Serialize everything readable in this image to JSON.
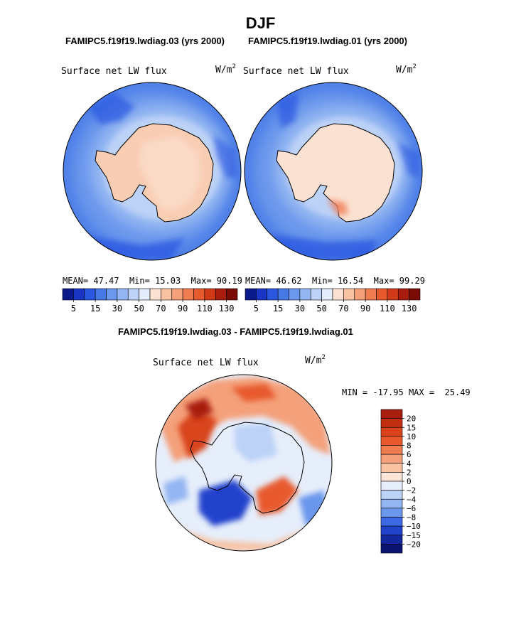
{
  "header": {
    "season": "DJF",
    "left_case": "FAMIPC5.f19f19.lwdiag.03 (yrs 2000)",
    "right_case": "FAMIPC5.f19f19.lwdiag.01 (yrs 2000)",
    "diff_title": "FAMIPC5.f19f19.lwdiag.03 - FAMIPC5.f19f19.lwdiag.01"
  },
  "chart_data": [
    {
      "type": "heatmap",
      "projection": "south-polar stereographic",
      "title": "Surface net LW flux",
      "units_base": "W/m",
      "units_exp": "2",
      "stats": {
        "mean_label": "MEAN=",
        "mean": "47.47",
        "min_label": "Min=",
        "min": "15.03",
        "max_label": "Max=",
        "max": "90.19"
      },
      "colorbar_ticks": [
        "5",
        "15",
        "30",
        "50",
        "70",
        "90",
        "110",
        "130"
      ],
      "colorbar_colors": [
        "#0b1a8a",
        "#1a35c4",
        "#2b56e0",
        "#4678e6",
        "#6b97ec",
        "#93b5f2",
        "#bcd2f7",
        "#e3ecfb",
        "#fbe1d1",
        "#f8c2a3",
        "#f4a07a",
        "#f07c52",
        "#e85a2e",
        "#d03a19",
        "#a81d0d",
        "#7a0b06"
      ]
    },
    {
      "type": "heatmap",
      "projection": "south-polar stereographic",
      "title": "Surface net LW flux",
      "units_base": "W/m",
      "units_exp": "2",
      "stats": {
        "mean_label": "MEAN=",
        "mean": "46.62",
        "min_label": "Min=",
        "min": "16.54",
        "max_label": "Max=",
        "max": "99.29"
      },
      "colorbar_ticks": [
        "5",
        "15",
        "30",
        "50",
        "70",
        "90",
        "110",
        "130"
      ],
      "colorbar_colors": [
        "#0b1a8a",
        "#1a35c4",
        "#2b56e0",
        "#4678e6",
        "#6b97ec",
        "#93b5f2",
        "#bcd2f7",
        "#e3ecfb",
        "#fbe1d1",
        "#f8c2a3",
        "#f4a07a",
        "#f07c52",
        "#e85a2e",
        "#d03a19",
        "#a81d0d",
        "#7a0b06"
      ]
    },
    {
      "type": "heatmap",
      "projection": "south-polar stereographic",
      "title": "Surface net LW flux",
      "units_base": "W/m",
      "units_exp": "2",
      "stats": {
        "min_label": "MIN =",
        "min": "-17.95",
        "max_label": "MAX =",
        "max": "25.49"
      },
      "colorbar_ticks": [
        "20",
        "15",
        "10",
        "8",
        "6",
        "4",
        "2",
        "0",
        "−2",
        "−4",
        "−6",
        "−8",
        "−10",
        "−15",
        "−20"
      ],
      "colorbar_colors": [
        "#a81d0d",
        "#c22e12",
        "#d9441c",
        "#e85a2e",
        "#f07c52",
        "#f4a07a",
        "#f8c2a3",
        "#fbe5d8",
        "#e6eefb",
        "#bcd2f7",
        "#93b5f2",
        "#6b97ec",
        "#3d6ae4",
        "#2143cc",
        "#13289e",
        "#0a1470"
      ]
    }
  ]
}
